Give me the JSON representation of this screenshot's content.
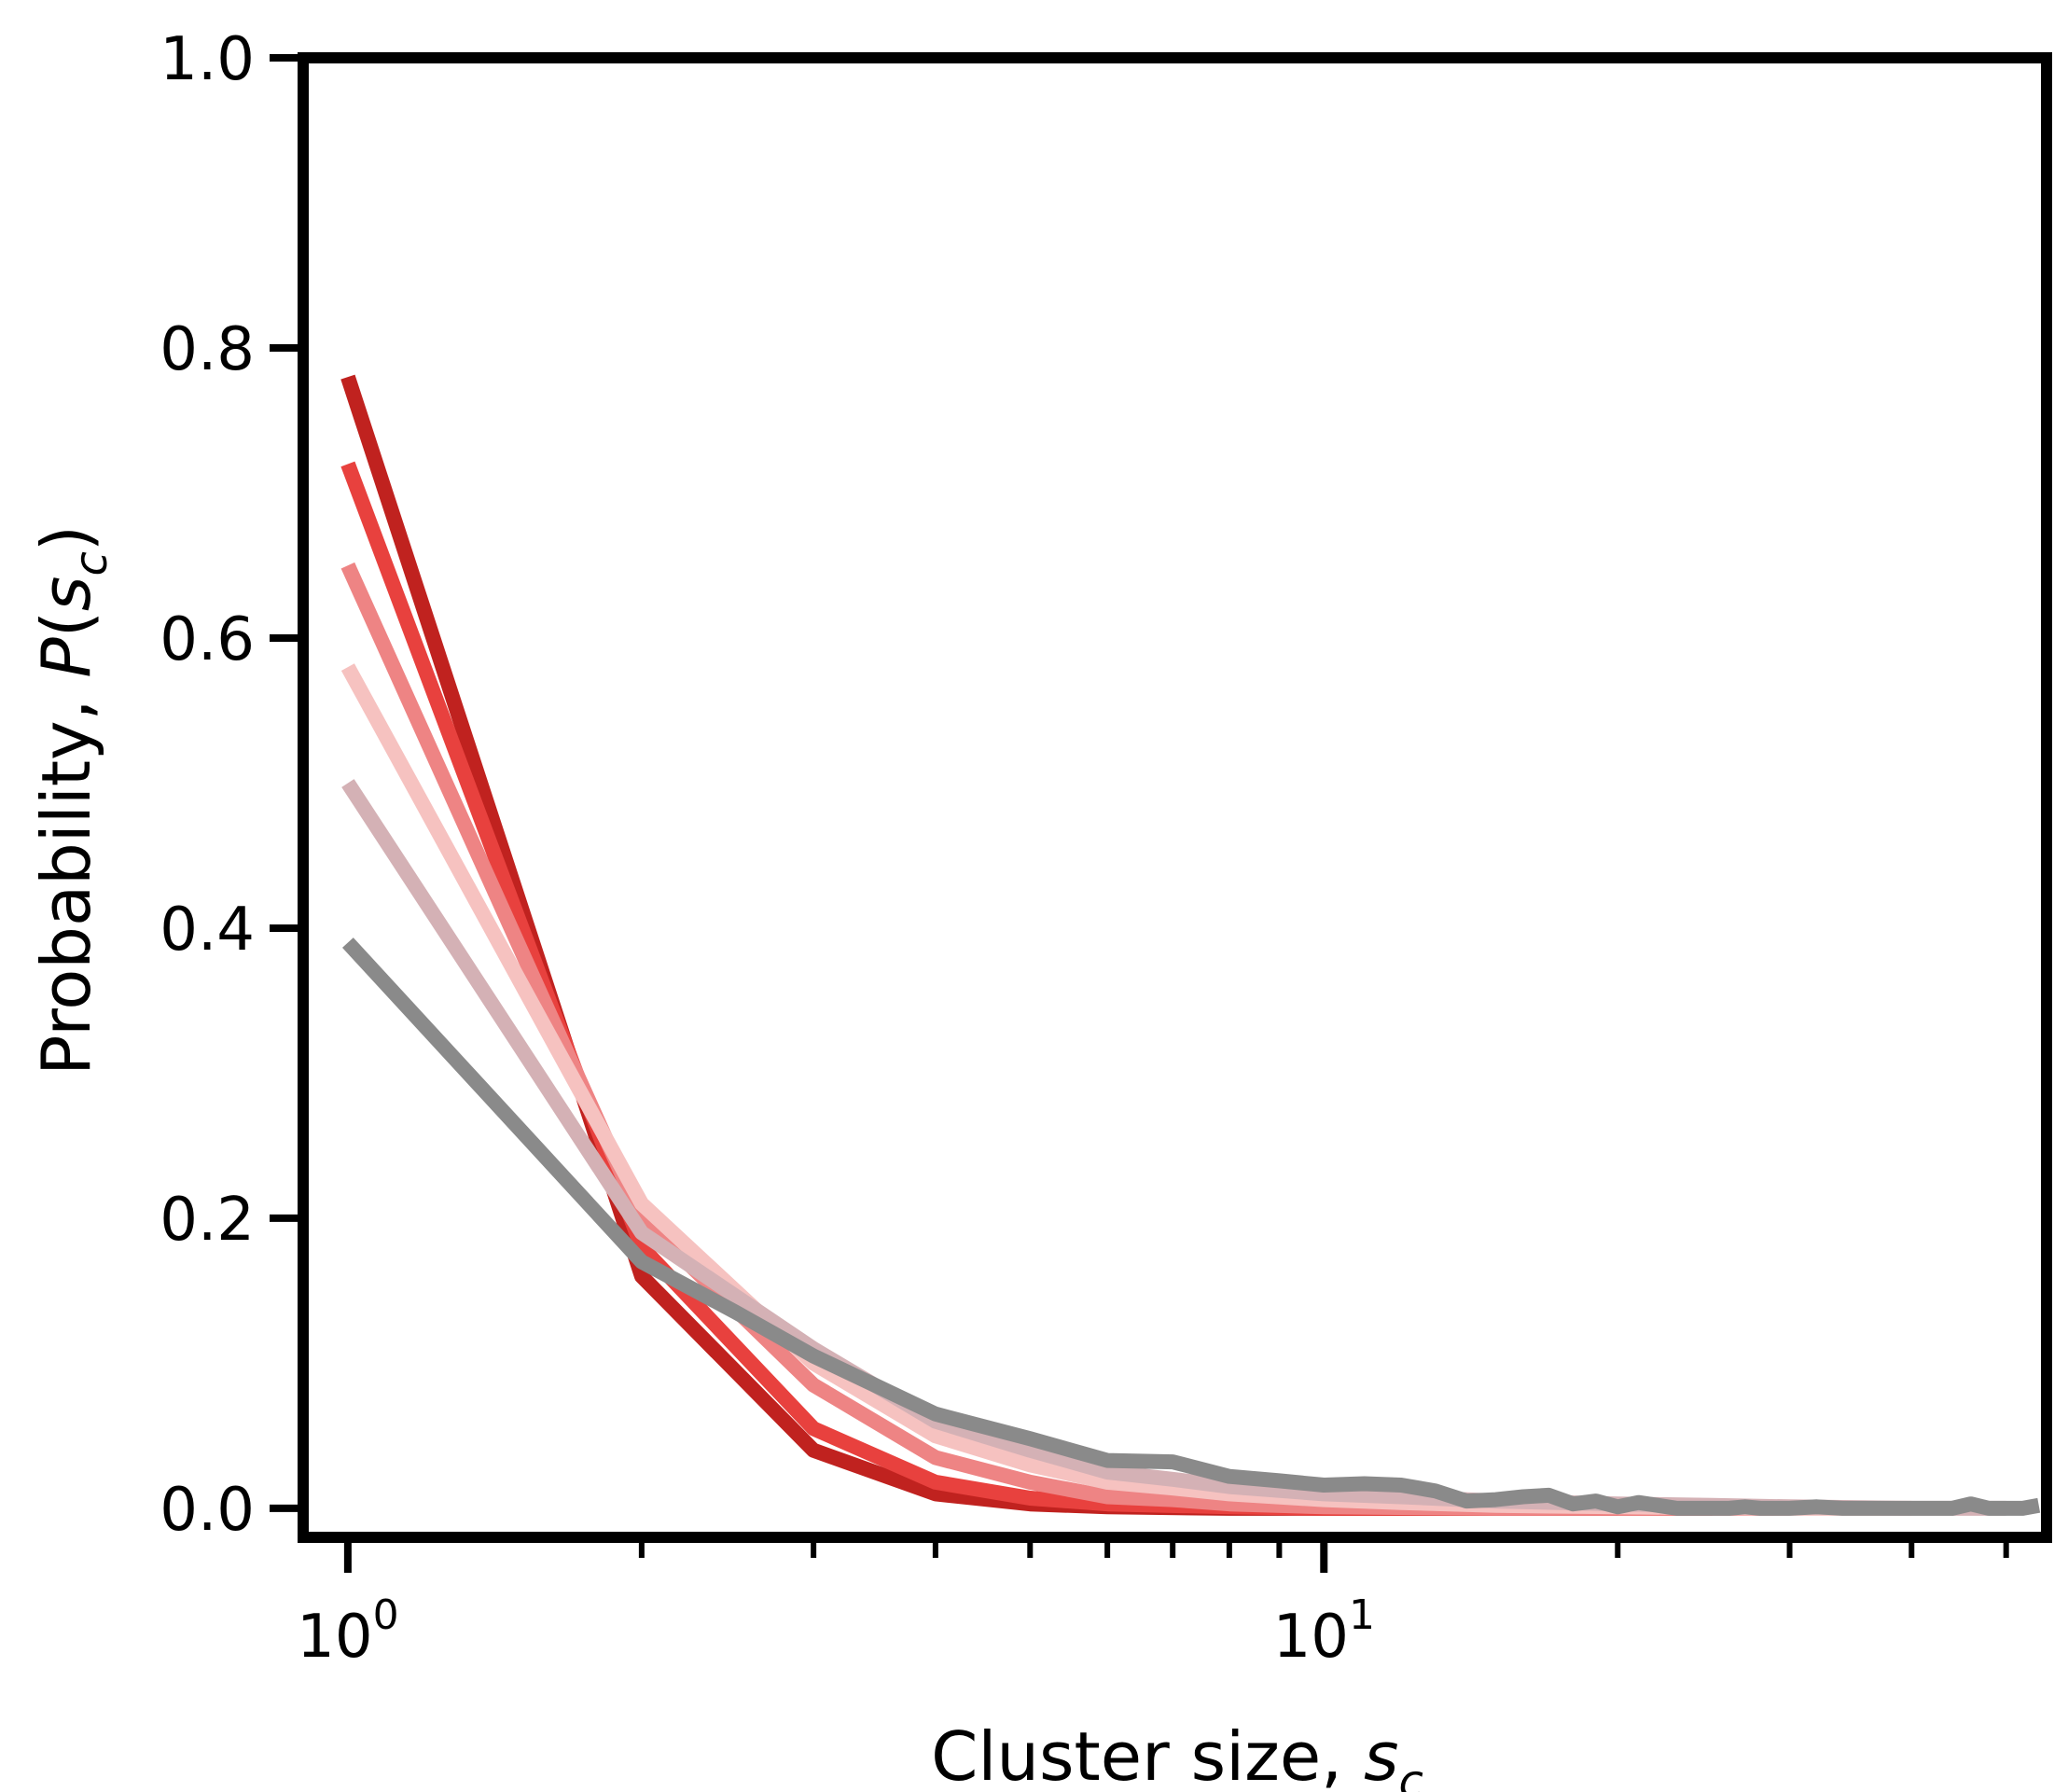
{
  "chart_data": {
    "type": "line",
    "title": "",
    "xlabel": "Cluster size, ",
    "xlabel_var": "s",
    "xlabel_sub": "c",
    "ylabel": "Probability, ",
    "ylabel_var": "P",
    "ylabel_open": "(",
    "ylabel_inner": "s",
    "ylabel_sub": "c",
    "ylabel_close": ")",
    "x_scale": "log",
    "xlim": [
      0.9,
      55
    ],
    "ylim": [
      -0.02,
      1.0
    ],
    "grid": false,
    "x_ticks": [
      {
        "value": 1,
        "base": "10",
        "exp": "0"
      },
      {
        "value": 10,
        "base": "10",
        "exp": "1"
      }
    ],
    "y_ticks": [
      {
        "value": 0.0,
        "label": "0.0"
      },
      {
        "value": 0.2,
        "label": "0.2"
      },
      {
        "value": 0.4,
        "label": "0.4"
      },
      {
        "value": 0.6,
        "label": "0.6"
      },
      {
        "value": 0.8,
        "label": "0.8"
      },
      {
        "value": 1.0,
        "label": "1.0"
      }
    ],
    "series": [
      {
        "color": "#c0221f",
        "x": [
          1,
          2,
          3,
          4,
          5,
          6,
          8,
          10,
          15,
          20
        ],
        "y": [
          0.78,
          0.16,
          0.04,
          0.01,
          0.003,
          0.001,
          0.0,
          0.0,
          0.0,
          0.0
        ]
      },
      {
        "color": "#e8413e",
        "x": [
          1,
          2,
          3,
          4,
          5,
          6,
          8,
          10,
          15,
          20,
          25
        ],
        "y": [
          0.72,
          0.18,
          0.055,
          0.018,
          0.007,
          0.003,
          0.001,
          0.0,
          0.0,
          0.0,
          0.0
        ]
      },
      {
        "color": "#ee8484",
        "x": [
          1,
          2,
          3,
          4,
          5,
          6,
          7,
          8,
          10,
          15,
          20,
          30
        ],
        "y": [
          0.65,
          0.2,
          0.085,
          0.035,
          0.018,
          0.008,
          0.006,
          0.003,
          0.001,
          0.0,
          0.0,
          0.0
        ]
      },
      {
        "color": "#f6c2c0",
        "x": [
          1,
          2,
          3,
          4,
          5,
          6,
          7,
          8,
          10,
          12,
          15,
          20,
          30,
          40
        ],
        "y": [
          0.58,
          0.21,
          0.1,
          0.05,
          0.03,
          0.018,
          0.014,
          0.01,
          0.006,
          0.004,
          0.002,
          0.001,
          0.0,
          0.0
        ]
      },
      {
        "color": "#d4b1b5",
        "x": [
          1,
          2,
          3,
          4,
          5,
          6,
          7,
          8,
          10,
          12,
          15,
          20,
          25,
          30,
          40,
          50
        ],
        "y": [
          0.5,
          0.19,
          0.11,
          0.06,
          0.04,
          0.025,
          0.02,
          0.015,
          0.01,
          0.008,
          0.005,
          0.003,
          0.002,
          0.001,
          0.0,
          0.0
        ]
      },
      {
        "color": "#8a8a8a",
        "x": [
          1,
          2,
          2.5,
          3,
          4,
          5,
          6,
          7,
          8,
          9,
          10,
          11,
          12,
          13,
          14,
          15,
          16,
          17,
          18,
          19,
          20,
          21,
          22,
          23,
          24,
          25,
          26,
          27,
          28,
          29,
          30,
          32,
          34,
          36,
          38,
          40,
          42,
          44,
          46,
          48,
          50,
          52,
          54
        ],
        "y": [
          0.39,
          0.17,
          0.135,
          0.105,
          0.065,
          0.048,
          0.033,
          0.032,
          0.022,
          0.019,
          0.016,
          0.017,
          0.016,
          0.012,
          0.005,
          0.006,
          0.008,
          0.009,
          0.003,
          0.005,
          0.001,
          0.004,
          0.002,
          0.0,
          0.0,
          0.0,
          0.0,
          0.001,
          0.0,
          0.0,
          0.0,
          0.001,
          0.0,
          0.0,
          0.0,
          0.0,
          0.0,
          0.0,
          0.003,
          0.0,
          0.0,
          0.0,
          0.002
        ]
      }
    ]
  }
}
